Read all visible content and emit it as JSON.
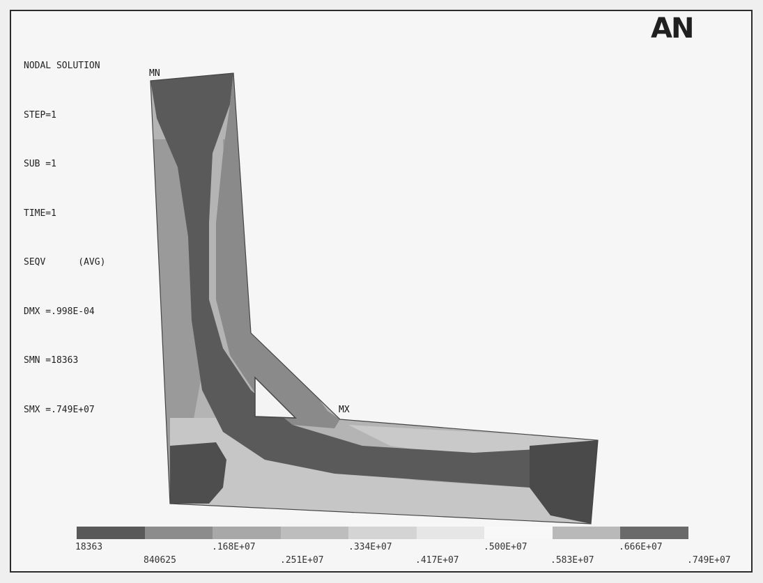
{
  "logo_text": "AN",
  "info": {
    "title": "NODAL SOLUTION",
    "lines": [
      "STEP=1",
      "SUB =1",
      "TIME=1",
      "SEQV      (AVG)",
      "DMX =.998E-04",
      "SMN =18363",
      "SMX =.749E+07"
    ]
  },
  "labels": {
    "min": "MN",
    "max": "MX"
  },
  "legend": {
    "colors": [
      "#595959",
      "#8c8c8c",
      "#a8a8a8",
      "#bdbdbd",
      "#d4d4d4",
      "#e6e6e6",
      "#f8f8f8",
      "#b9b9b9",
      "#6a6a6a"
    ],
    "top_ticks": [
      "18363",
      ".168E+07",
      ".334E+07",
      ".500E+07",
      ".666E+07"
    ],
    "bottom_ticks": [
      "840625",
      ".251E+07",
      ".417E+07",
      ".583E+07",
      ".749E+07"
    ]
  }
}
